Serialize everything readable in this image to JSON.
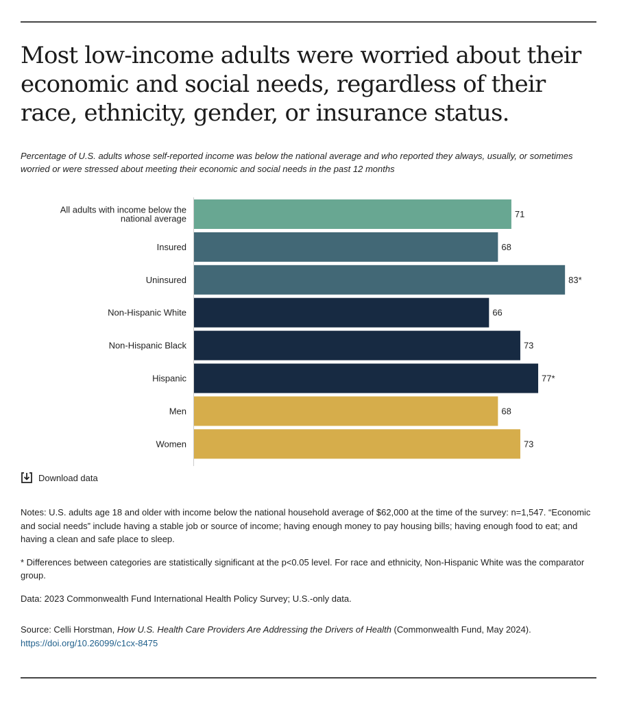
{
  "title": "Most low-income adults were worried about their economic and social needs, regardless of their race, ethnicity, gender, or insurance status.",
  "subtitle": "Percentage of U.S. adults whose self-reported income was below the national average and who reported they always, usually, or sometimes worried or were stressed about meeting their economic and social needs in the past 12 months",
  "download_label": "Download data",
  "download_icon": "download-icon",
  "notes": {
    "notes_text": "Notes: U.S. adults age 18 and older with income below the national household average of $62,000 at the time of the survey: n=1,547. “Economic and social needs” include having a stable job or source of income; having enough money to pay housing bills; having enough food to eat; and having a clean and safe place to sleep.",
    "significance_text": "* Differences between categories are statistically significant at the p<0.05 level. For race and ethnicity, Non-Hispanic White was the comparator group.",
    "data_text": "Data: 2023 Commonwealth Fund International Health Policy Survey; U.S.-only data.",
    "source_prefix": "Source: Celli Horstman, ",
    "source_title": "How U.S. Health Care Providers Are Addressing the Drivers of Health",
    "source_suffix": " (Commonwealth Fund, May 2024). ",
    "source_link": "https://doi.org/10.26099/c1cx-8475"
  },
  "colors": {
    "teal": "#68a792",
    "slate": "#426876",
    "navy": "#172a42",
    "gold": "#d6ad4b"
  },
  "chart_data": {
    "type": "bar",
    "orientation": "horizontal",
    "xlim": [
      0,
      100
    ],
    "grid": false,
    "categories": [
      "All adults with income below the national average",
      "Insured",
      "Uninsured",
      "Non-Hispanic White",
      "Non-Hispanic Black",
      "Hispanic",
      "Men",
      "Women"
    ],
    "values": [
      71,
      68,
      83,
      66,
      73,
      77,
      68,
      73
    ],
    "value_labels": [
      "71",
      "68",
      "83*",
      "66",
      "73",
      "77*",
      "68",
      "73"
    ],
    "bar_colors": [
      "#68a792",
      "#426876",
      "#426876",
      "#172a42",
      "#172a42",
      "#172a42",
      "#d6ad4b",
      "#d6ad4b"
    ]
  }
}
